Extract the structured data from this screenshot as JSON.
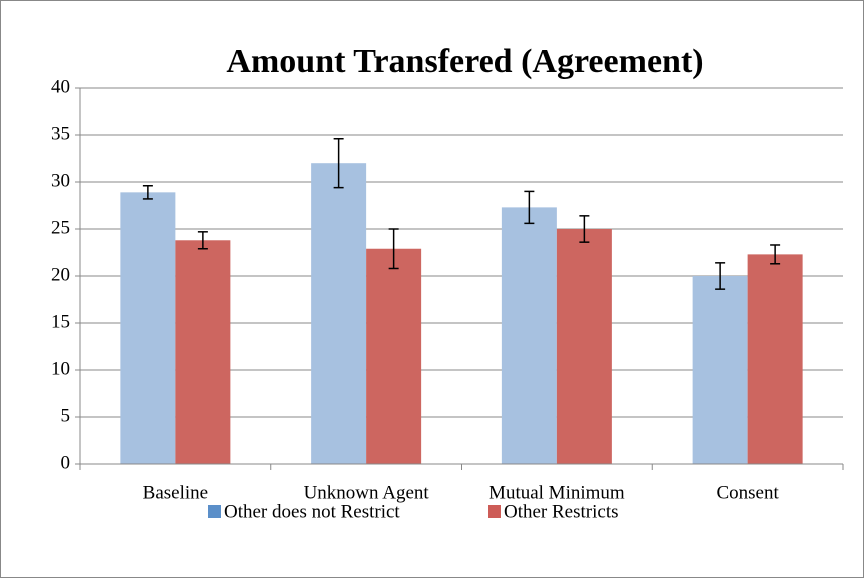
{
  "chart_data": {
    "type": "bar",
    "title": "Amount Transfered (Agreement)",
    "categories": [
      "Baseline",
      "Unknown Agent",
      "Mutual Minimum",
      "Consent"
    ],
    "series": [
      {
        "name": "Other does not Restrict",
        "color": "#a7c1e0",
        "legend_color": "#5b8fc9",
        "values": [
          28.9,
          32.0,
          27.3,
          20.0
        ],
        "errors": [
          0.7,
          2.6,
          1.7,
          1.4
        ]
      },
      {
        "name": "Other Restricts",
        "color": "#cd6660",
        "legend_color": "#cd5c57",
        "values": [
          23.8,
          22.9,
          25.0,
          22.3
        ],
        "errors": [
          0.9,
          2.1,
          1.4,
          1.0
        ]
      }
    ],
    "ylim": [
      0,
      40
    ],
    "yticks": [
      0,
      5,
      10,
      15,
      20,
      25,
      30,
      35,
      40
    ],
    "grid": true,
    "legend": "bottom"
  }
}
